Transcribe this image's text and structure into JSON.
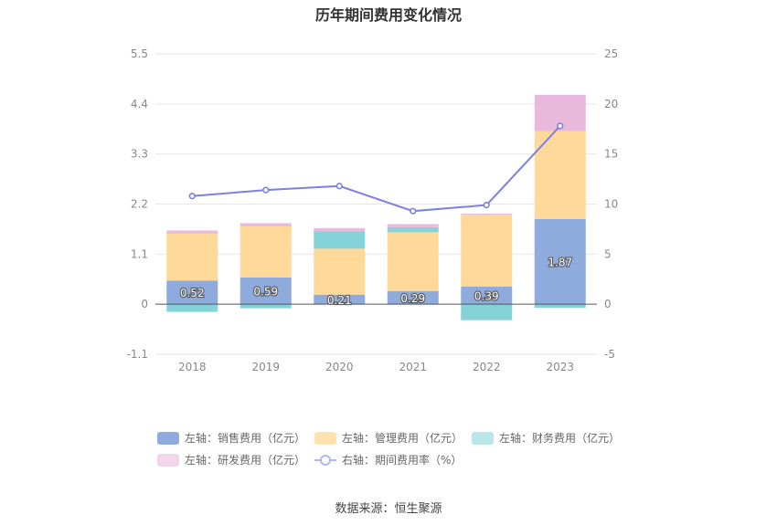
{
  "page": {
    "title": "历年期间费用变化情况",
    "source": "数据来源：恒生聚源"
  },
  "chart_data": {
    "type": "bar",
    "stacked": true,
    "title": "历年期间费用变化情况",
    "categories": [
      "2018",
      "2019",
      "2020",
      "2021",
      "2022",
      "2023"
    ],
    "left_axis": {
      "ticks": [
        "5.5",
        "4.4",
        "3.3",
        "2.2",
        "1.1",
        "0",
        "-1.1"
      ],
      "ylim": [
        -1.1,
        5.5
      ]
    },
    "right_axis": {
      "ticks": [
        "25",
        "20",
        "15",
        "10",
        "5",
        "0",
        "-5"
      ],
      "ylim": [
        -5,
        25
      ]
    },
    "series": [
      {
        "name": "左轴：销售费用（亿元）",
        "axis": "left",
        "color": "#8faadc",
        "values": [
          0.52,
          0.59,
          0.21,
          0.29,
          0.39,
          1.87
        ]
      },
      {
        "name": "左轴：管理费用（亿元）",
        "axis": "left",
        "color": "#ffd99a",
        "values": [
          1.03,
          1.12,
          1.01,
          1.29,
          1.58,
          1.93
        ]
      },
      {
        "name": "左轴：财务费用（亿元）",
        "axis": "left",
        "color": "#84d3d9",
        "values": [
          -0.17,
          -0.09,
          0.38,
          0.11,
          -0.35,
          -0.08
        ]
      },
      {
        "name": "左轴：研发费用（亿元）",
        "axis": "left",
        "color": "#e8b9dc",
        "values": [
          0.07,
          0.07,
          0.07,
          0.07,
          0.02,
          0.8
        ]
      },
      {
        "name": "右轴：期间费用率（%）",
        "axis": "right",
        "type": "line",
        "color": "#7b7fe6",
        "values": [
          10.8,
          11.4,
          11.8,
          9.3,
          9.9,
          17.8
        ]
      }
    ],
    "data_labels": [
      "0.52",
      "0.59",
      "0.21",
      "0.29",
      "0.39",
      "1.87"
    ],
    "grid": true,
    "legend_position": "bottom"
  }
}
